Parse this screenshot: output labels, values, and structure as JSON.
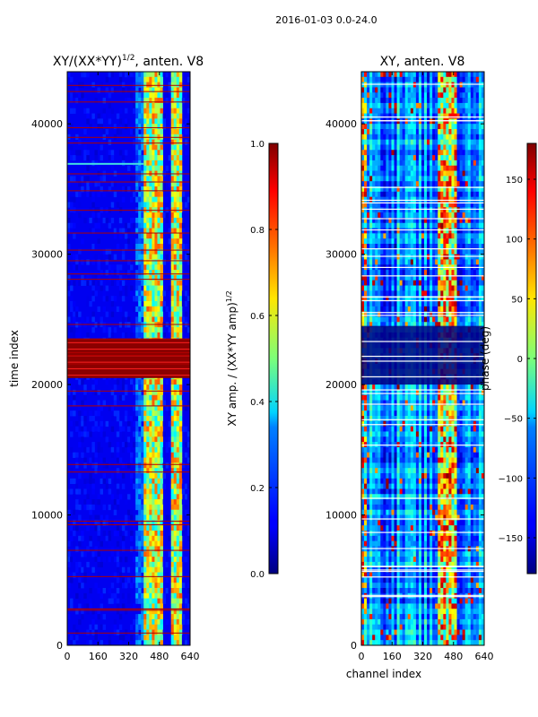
{
  "suptitle": "2016-01-03 0.0-24.0",
  "chart_data": [
    {
      "type": "heatmap",
      "id": "ratio",
      "title": "XY/(XX*YY)^1/2, anten. V8",
      "title_main": "XY/(XX*YY)",
      "title_sup": "1/2",
      "title_tail": ", anten. V8",
      "xlabel": "",
      "ylabel": "time index",
      "xlim": [
        0,
        640
      ],
      "ylim": [
        0,
        44000
      ],
      "xticks": [
        0,
        160,
        320,
        480,
        640
      ],
      "yticks": [
        0,
        10000,
        20000,
        30000,
        40000
      ],
      "colormap": "jet",
      "colorbar": {
        "label": "XY amp. / (XX*YY amp)^1/2",
        "label_main": "XY amp. / (XX*YY amp)",
        "label_sup": "1/2",
        "range": [
          0.0,
          1.0
        ],
        "ticks": [
          "0.0",
          "0.2",
          "0.4",
          "0.6",
          "0.8",
          "1.0"
        ],
        "tick_values": [
          0.0,
          0.2,
          0.4,
          0.6,
          0.8,
          1.0
        ]
      },
      "bright_band_channels": [
        [
          400,
          500
        ],
        [
          540,
          600
        ]
      ],
      "saturated_time_band": [
        20500,
        23500
      ]
    },
    {
      "type": "heatmap",
      "id": "phase",
      "title": "XY, anten. V8",
      "xlabel": "channel index",
      "ylabel": "",
      "xlim": [
        0,
        640
      ],
      "ylim": [
        0,
        44000
      ],
      "xticks": [
        0,
        160,
        320,
        480,
        640
      ],
      "yticks": [
        0,
        10000,
        20000,
        30000,
        40000
      ],
      "colormap": "jet",
      "colorbar": {
        "label": "phase (deg)",
        "range": [
          -180,
          180
        ],
        "ticks": [
          "150",
          "100",
          "50",
          "0",
          "−50",
          "−100",
          "−150"
        ],
        "tick_values": [
          150,
          100,
          50,
          0,
          -50,
          -100,
          -150
        ]
      }
    }
  ]
}
